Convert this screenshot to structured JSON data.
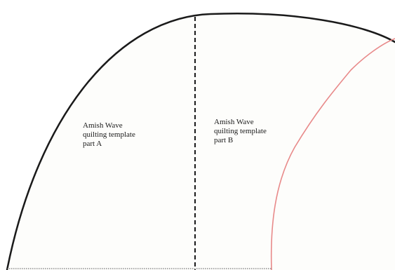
{
  "template": {
    "part_a": {
      "lines": [
        "Amish Wave",
        "quilting template",
        "part A"
      ]
    },
    "part_b": {
      "lines": [
        "Amish Wave",
        "quilting template",
        "part B"
      ]
    }
  },
  "colors": {
    "outer_arc": "#1a1a1a",
    "fold_line": "#1a1a1a",
    "inner_curve": "#e88a8a",
    "base_line": "#555555",
    "paper_fill": "#fdfdfb"
  }
}
